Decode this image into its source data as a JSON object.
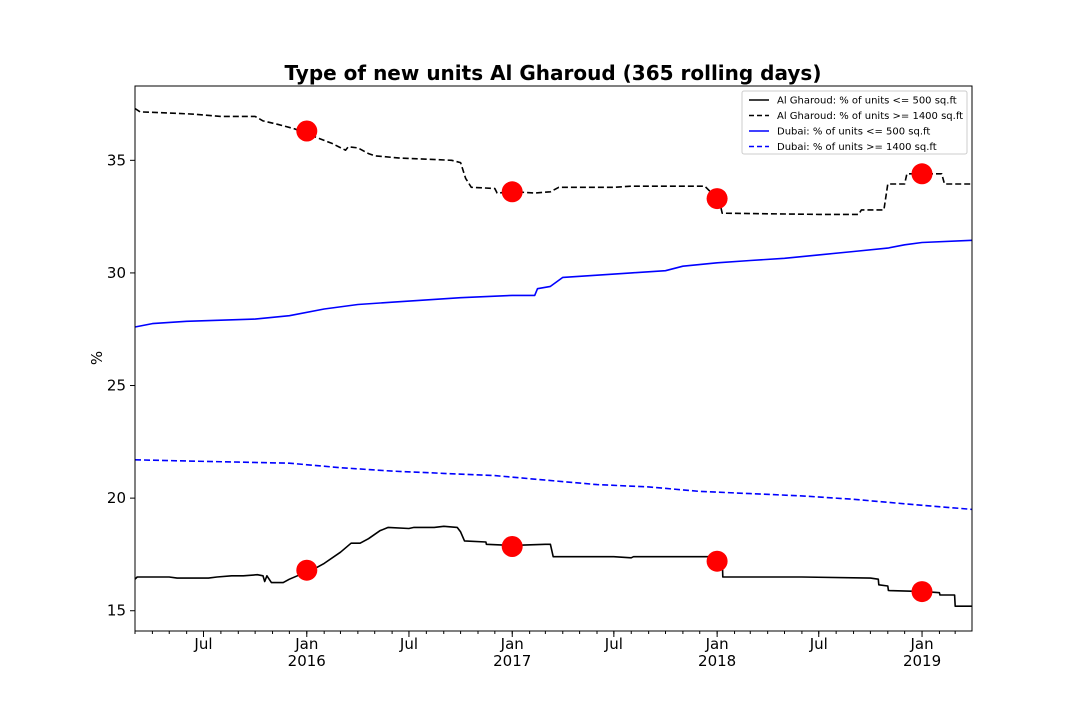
{
  "chart_data": {
    "type": "line",
    "title": "Type of new units Al Gharoud (365 rolling days)",
    "xlabel": "",
    "ylabel": "%",
    "xlim": [
      "2015-03-01",
      "2019-03-31"
    ],
    "ylim": [
      14.1,
      38.3
    ],
    "y_ticks": [
      15,
      20,
      25,
      30,
      35
    ],
    "x_ticks": [
      {
        "date": "2015-07-01",
        "label": "Jul",
        "year": ""
      },
      {
        "date": "2016-01-01",
        "label": "Jan",
        "year": "2016"
      },
      {
        "date": "2016-07-01",
        "label": "Jul",
        "year": ""
      },
      {
        "date": "2017-01-01",
        "label": "Jan",
        "year": "2017"
      },
      {
        "date": "2017-07-01",
        "label": "Jul",
        "year": ""
      },
      {
        "date": "2018-01-01",
        "label": "Jan",
        "year": "2018"
      },
      {
        "date": "2018-07-01",
        "label": "Jul",
        "year": ""
      },
      {
        "date": "2019-01-01",
        "label": "Jan",
        "year": "2019"
      }
    ],
    "legend_position": "top-right",
    "series": [
      {
        "name": "Al Gharoud: % of units <= 500 sq.ft",
        "color": "#000000",
        "dash": "solid",
        "points": [
          [
            "2015-03-01",
            16.4
          ],
          [
            "2015-03-05",
            16.5
          ],
          [
            "2015-04-10",
            16.5
          ],
          [
            "2015-05-01",
            16.5
          ],
          [
            "2015-05-15",
            16.45
          ],
          [
            "2015-06-20",
            16.45
          ],
          [
            "2015-07-10",
            16.45
          ],
          [
            "2015-07-25",
            16.5
          ],
          [
            "2015-08-20",
            16.55
          ],
          [
            "2015-09-10",
            16.55
          ],
          [
            "2015-10-05",
            16.6
          ],
          [
            "2015-10-15",
            16.55
          ],
          [
            "2015-10-18",
            16.3
          ],
          [
            "2015-10-22",
            16.55
          ],
          [
            "2015-10-30",
            16.25
          ],
          [
            "2015-11-20",
            16.25
          ],
          [
            "2015-12-01",
            16.4
          ],
          [
            "2015-12-20",
            16.6
          ],
          [
            "2016-01-10",
            16.8
          ],
          [
            "2016-02-01",
            17.1
          ],
          [
            "2016-03-01",
            17.6
          ],
          [
            "2016-03-20",
            18.0
          ],
          [
            "2016-04-05",
            18.0
          ],
          [
            "2016-04-20",
            18.2
          ],
          [
            "2016-05-10",
            18.55
          ],
          [
            "2016-05-25",
            18.7
          ],
          [
            "2016-07-01",
            18.65
          ],
          [
            "2016-07-10",
            18.7
          ],
          [
            "2016-08-15",
            18.7
          ],
          [
            "2016-09-01",
            18.75
          ],
          [
            "2016-09-25",
            18.7
          ],
          [
            "2016-10-01",
            18.5
          ],
          [
            "2016-10-08",
            18.1
          ],
          [
            "2016-11-15",
            18.05
          ],
          [
            "2016-11-16",
            17.95
          ],
          [
            "2017-01-01",
            17.9
          ],
          [
            "2017-03-01",
            17.95
          ],
          [
            "2017-03-10",
            17.95
          ],
          [
            "2017-03-15",
            17.4
          ],
          [
            "2017-07-01",
            17.4
          ],
          [
            "2017-08-01",
            17.35
          ],
          [
            "2017-08-05",
            17.4
          ],
          [
            "2017-12-20",
            17.4
          ],
          [
            "2018-01-10",
            17.4
          ],
          [
            "2018-01-11",
            16.5
          ],
          [
            "2018-06-01",
            16.5
          ],
          [
            "2018-10-01",
            16.45
          ],
          [
            "2018-10-15",
            16.4
          ],
          [
            "2018-10-16",
            16.15
          ],
          [
            "2018-11-01",
            16.1
          ],
          [
            "2018-11-02",
            15.9
          ],
          [
            "2019-01-05",
            15.85
          ],
          [
            "2019-02-01",
            15.8
          ],
          [
            "2019-02-02",
            15.7
          ],
          [
            "2019-02-28",
            15.7
          ],
          [
            "2019-03-01",
            15.2
          ],
          [
            "2019-03-31",
            15.2
          ]
        ]
      },
      {
        "name": "Al Gharoud: % of units >= 1400 sq.ft",
        "color": "#000000",
        "dash": "dashed",
        "points": [
          [
            "2015-03-01",
            37.3
          ],
          [
            "2015-03-10",
            37.15
          ],
          [
            "2015-05-01",
            37.1
          ],
          [
            "2015-06-15",
            37.05
          ],
          [
            "2015-08-01",
            36.95
          ],
          [
            "2015-10-01",
            36.95
          ],
          [
            "2015-10-15",
            36.75
          ],
          [
            "2015-11-10",
            36.6
          ],
          [
            "2015-12-10",
            36.4
          ],
          [
            "2016-01-15",
            36.05
          ],
          [
            "2016-02-15",
            35.75
          ],
          [
            "2016-03-10",
            35.45
          ],
          [
            "2016-03-15",
            35.6
          ],
          [
            "2016-04-01",
            35.55
          ],
          [
            "2016-04-20",
            35.3
          ],
          [
            "2016-05-01",
            35.2
          ],
          [
            "2016-06-15",
            35.1
          ],
          [
            "2016-08-01",
            35.05
          ],
          [
            "2016-09-15",
            35.0
          ],
          [
            "2016-10-01",
            34.9
          ],
          [
            "2016-10-10",
            34.2
          ],
          [
            "2016-10-20",
            33.8
          ],
          [
            "2016-12-01",
            33.75
          ],
          [
            "2016-12-05",
            33.55
          ],
          [
            "2017-01-05",
            33.6
          ],
          [
            "2017-02-10",
            33.55
          ],
          [
            "2017-03-10",
            33.6
          ],
          [
            "2017-03-25",
            33.8
          ],
          [
            "2017-07-01",
            33.8
          ],
          [
            "2017-08-01",
            33.85
          ],
          [
            "2017-12-10",
            33.85
          ],
          [
            "2017-12-20",
            33.6
          ],
          [
            "2018-01-05",
            33.2
          ],
          [
            "2018-01-10",
            32.65
          ],
          [
            "2018-07-01",
            32.6
          ],
          [
            "2018-09-10",
            32.6
          ],
          [
            "2018-09-15",
            32.8
          ],
          [
            "2018-10-25",
            32.8
          ],
          [
            "2018-11-01",
            33.95
          ],
          [
            "2018-12-01",
            33.95
          ],
          [
            "2018-12-05",
            34.4
          ],
          [
            "2019-02-05",
            34.4
          ],
          [
            "2019-02-10",
            33.95
          ],
          [
            "2019-03-31",
            33.95
          ]
        ]
      },
      {
        "name": "Dubai: % of units <= 500 sq.ft",
        "color": "#0000ff",
        "dash": "solid",
        "points": [
          [
            "2015-03-01",
            27.6
          ],
          [
            "2015-04-01",
            27.75
          ],
          [
            "2015-06-01",
            27.85
          ],
          [
            "2015-08-01",
            27.9
          ],
          [
            "2015-10-01",
            27.95
          ],
          [
            "2015-12-01",
            28.1
          ],
          [
            "2016-02-01",
            28.4
          ],
          [
            "2016-04-01",
            28.6
          ],
          [
            "2016-06-01",
            28.7
          ],
          [
            "2016-08-01",
            28.8
          ],
          [
            "2016-10-01",
            28.9
          ],
          [
            "2017-01-01",
            29.0
          ],
          [
            "2017-02-10",
            29.0
          ],
          [
            "2017-02-15",
            29.3
          ],
          [
            "2017-03-10",
            29.4
          ],
          [
            "2017-04-01",
            29.8
          ],
          [
            "2017-06-01",
            29.9
          ],
          [
            "2017-08-01",
            30.0
          ],
          [
            "2017-10-01",
            30.1
          ],
          [
            "2017-11-01",
            30.3
          ],
          [
            "2018-01-01",
            30.45
          ],
          [
            "2018-03-01",
            30.55
          ],
          [
            "2018-05-01",
            30.65
          ],
          [
            "2018-07-01",
            30.8
          ],
          [
            "2018-09-01",
            30.95
          ],
          [
            "2018-11-01",
            31.1
          ],
          [
            "2018-12-01",
            31.25
          ],
          [
            "2019-01-01",
            31.35
          ],
          [
            "2019-03-31",
            31.45
          ]
        ]
      },
      {
        "name": "Dubai: % of units >= 1400 sq.ft",
        "color": "#0000ff",
        "dash": "dashed",
        "points": [
          [
            "2015-03-01",
            21.7
          ],
          [
            "2015-06-01",
            21.65
          ],
          [
            "2015-09-01",
            21.6
          ],
          [
            "2015-12-01",
            21.55
          ],
          [
            "2016-03-01",
            21.35
          ],
          [
            "2016-06-01",
            21.2
          ],
          [
            "2016-09-01",
            21.1
          ],
          [
            "2016-12-01",
            21.0
          ],
          [
            "2017-03-01",
            20.8
          ],
          [
            "2017-06-01",
            20.6
          ],
          [
            "2017-09-01",
            20.5
          ],
          [
            "2017-12-01",
            20.3
          ],
          [
            "2018-03-01",
            20.2
          ],
          [
            "2018-06-01",
            20.1
          ],
          [
            "2018-09-01",
            19.95
          ],
          [
            "2018-12-01",
            19.75
          ],
          [
            "2019-03-31",
            19.5
          ]
        ]
      }
    ],
    "markers": {
      "color": "#ff0000",
      "points": [
        [
          "2016-01-01",
          36.3
        ],
        [
          "2017-01-01",
          33.6
        ],
        [
          "2018-01-01",
          33.3
        ],
        [
          "2019-01-01",
          34.4
        ],
        [
          "2016-01-01",
          16.8
        ],
        [
          "2017-01-01",
          17.85
        ],
        [
          "2018-01-01",
          17.2
        ],
        [
          "2019-01-01",
          15.85
        ]
      ]
    }
  }
}
